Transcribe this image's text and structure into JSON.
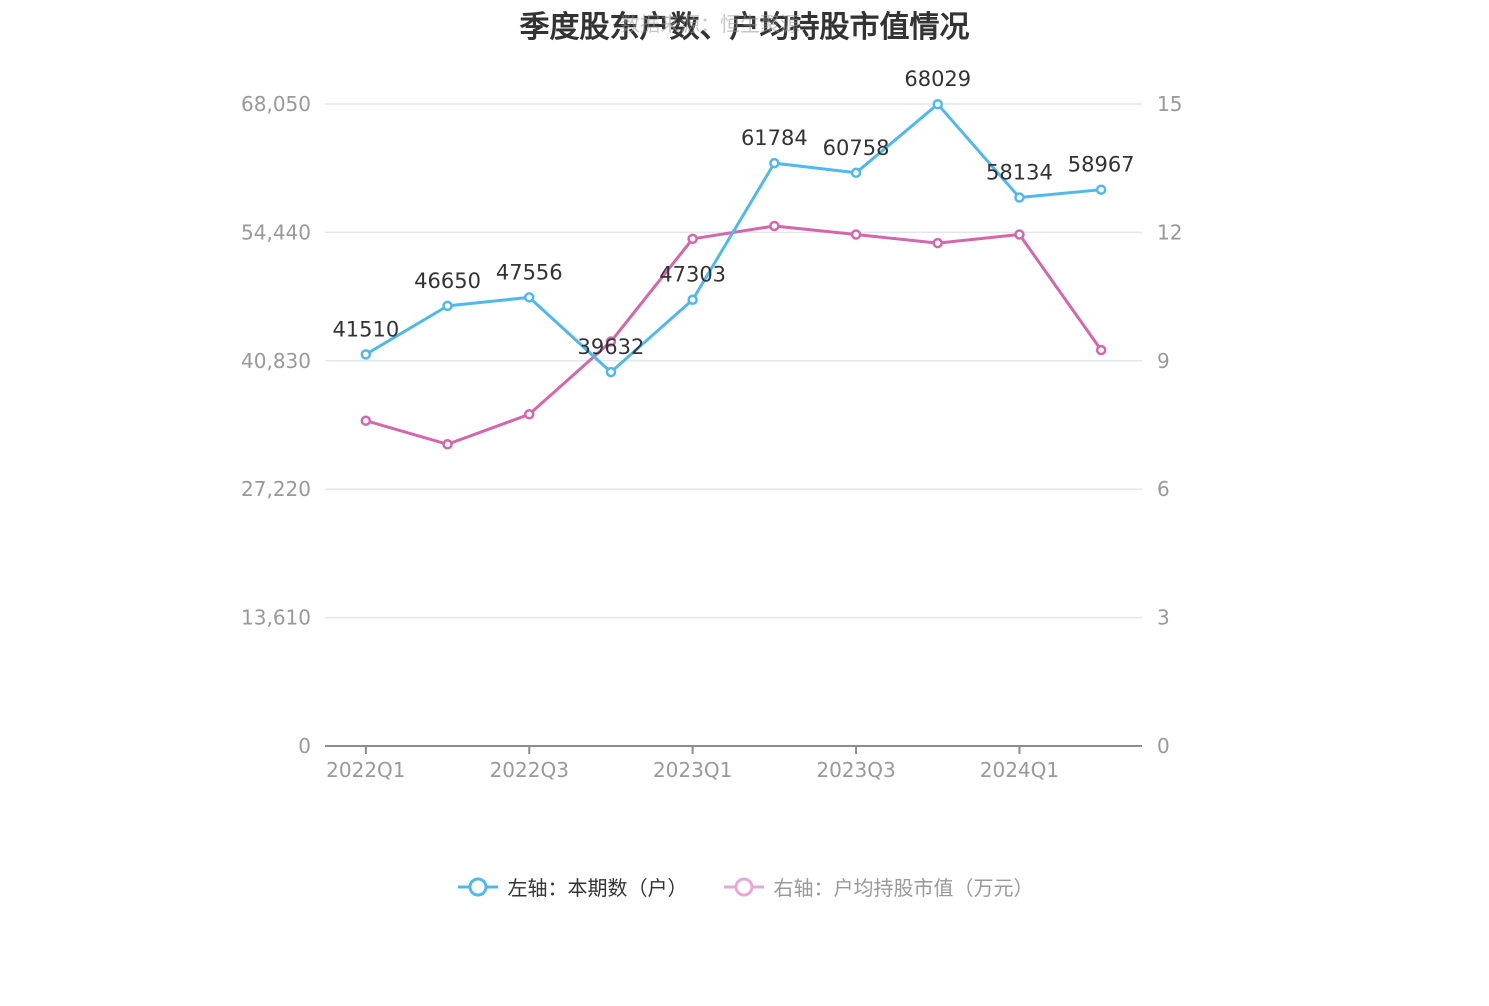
{
  "chart_data": {
    "type": "line",
    "title": "季度股东户数、户均持股市值情况",
    "watermark": "数据来源：恒生聚源",
    "categories": [
      "2022Q1",
      "2022Q2",
      "2022Q3",
      "2022Q4",
      "2023Q1",
      "2023Q2",
      "2023Q3",
      "2023Q4",
      "2024Q1",
      "2024Q2"
    ],
    "x_tick_labels": [
      "2022Q1",
      "2022Q3",
      "2023Q1",
      "2023Q3",
      "2024Q1"
    ],
    "left_axis": {
      "ticks": [
        "0",
        "13,610",
        "27,220",
        "40,830",
        "54,440",
        "68,050"
      ],
      "range": [
        0,
        68050
      ]
    },
    "right_axis": {
      "ticks": [
        "0",
        "3",
        "6",
        "9",
        "12",
        "15"
      ],
      "range": [
        0,
        15
      ]
    },
    "grid": true,
    "legend_position": "bottom",
    "series": [
      {
        "name": "左轴：本期数（户）",
        "axis": "left",
        "color": "#4fb8ec",
        "values": [
          41510,
          46650,
          47556,
          39632,
          47303,
          61784,
          60758,
          68029,
          58134,
          58967
        ],
        "labels": [
          "41510",
          "46650",
          "47556",
          "39632",
          "47303",
          "61784",
          "60758",
          "68029",
          "58134",
          "58967"
        ]
      },
      {
        "name": "右轴：户均持股市值（万元）",
        "axis": "right",
        "color": "#d466ac",
        "values": [
          7.6,
          7.05,
          7.75,
          9.45,
          11.85,
          12.15,
          11.95,
          11.75,
          11.95,
          9.25
        ]
      }
    ]
  }
}
